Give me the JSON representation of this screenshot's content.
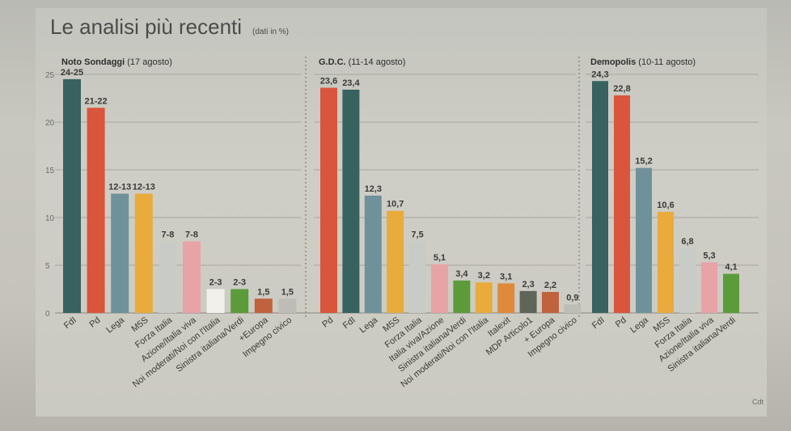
{
  "header": {
    "title": "Le analisi più recenti",
    "unit": "(dati in %)",
    "credit": "Cdt"
  },
  "chart_data": {
    "type": "bar",
    "ylim": [
      0,
      25
    ],
    "yticks": [
      0,
      5,
      10,
      15,
      20,
      25
    ],
    "grid": true,
    "title": "Le analisi più recenti",
    "panels": [
      {
        "source": "Noto Sondaggi",
        "date": "(17 agosto)",
        "categories": [
          "FdI",
          "Pd",
          "Lega",
          "M5S",
          "Forza Italia",
          "Azione/Italia viva",
          "Noi moderati/Noi con l'Italia",
          "Sinistra italiana/Verdi",
          "+Europa",
          "Impegno civico"
        ],
        "values": [
          24.5,
          21.5,
          12.5,
          12.5,
          7.5,
          7.5,
          2.5,
          2.5,
          1.5,
          1.5
        ],
        "labels": [
          "24-25",
          "21-22",
          "12-13",
          "12-13",
          "7-8",
          "7-8",
          "2-3",
          "2-3",
          "1,5",
          "1,5"
        ],
        "colors": [
          "#37625f",
          "#d9553c",
          "#6f929a",
          "#e8ab3c",
          "#c9cbc7",
          "#e7a3a6",
          "#f1f0ea",
          "#5c9b3a",
          "#c0623e",
          "#bdbcb6"
        ]
      },
      {
        "source": "G.D.C.",
        "date": "(11-14 agosto)",
        "categories": [
          "Pd",
          "FdI",
          "Lega",
          "M5S",
          "Forza Italia",
          "Italia viva/Azione",
          "Sinistra italiana/Verdi",
          "Noi moderati/Noi con l'Italia",
          "Italexit",
          "MDP Articolo1",
          "+ Europa",
          "Impegno civico"
        ],
        "values": [
          23.6,
          23.4,
          12.3,
          10.7,
          7.5,
          5.1,
          3.4,
          3.2,
          3.1,
          2.3,
          2.2,
          0.9
        ],
        "labels": [
          "23,6",
          "23,4",
          "12,3",
          "10,7",
          "7,5",
          "5,1",
          "3,4",
          "3,2",
          "3,1",
          "2,3",
          "2,2",
          "0,9"
        ],
        "colors": [
          "#d9553c",
          "#37625f",
          "#6f929a",
          "#e8ab3c",
          "#c9cbc7",
          "#e7a3a6",
          "#5c9b3a",
          "#e8ab3c",
          "#df8a3a",
          "#5f6558",
          "#c0623e",
          "#bdbcb6"
        ]
      },
      {
        "source": "Demopolis",
        "date": "(10-11 agosto)",
        "categories": [
          "FdI",
          "Pd",
          "Lega",
          "M5S",
          "Forza Italia",
          "Azione/Italia viva",
          "Sinistra italiana/Verdi"
        ],
        "values": [
          24.3,
          22.8,
          15.2,
          10.6,
          6.8,
          5.3,
          4.1
        ],
        "labels": [
          "24,3",
          "22,8",
          "15,2",
          "10,6",
          "6,8",
          "5,3",
          "4,1"
        ],
        "colors": [
          "#37625f",
          "#d9553c",
          "#6f929a",
          "#e8ab3c",
          "#c9cbc7",
          "#e7a3a6",
          "#5c9b3a"
        ]
      }
    ]
  }
}
